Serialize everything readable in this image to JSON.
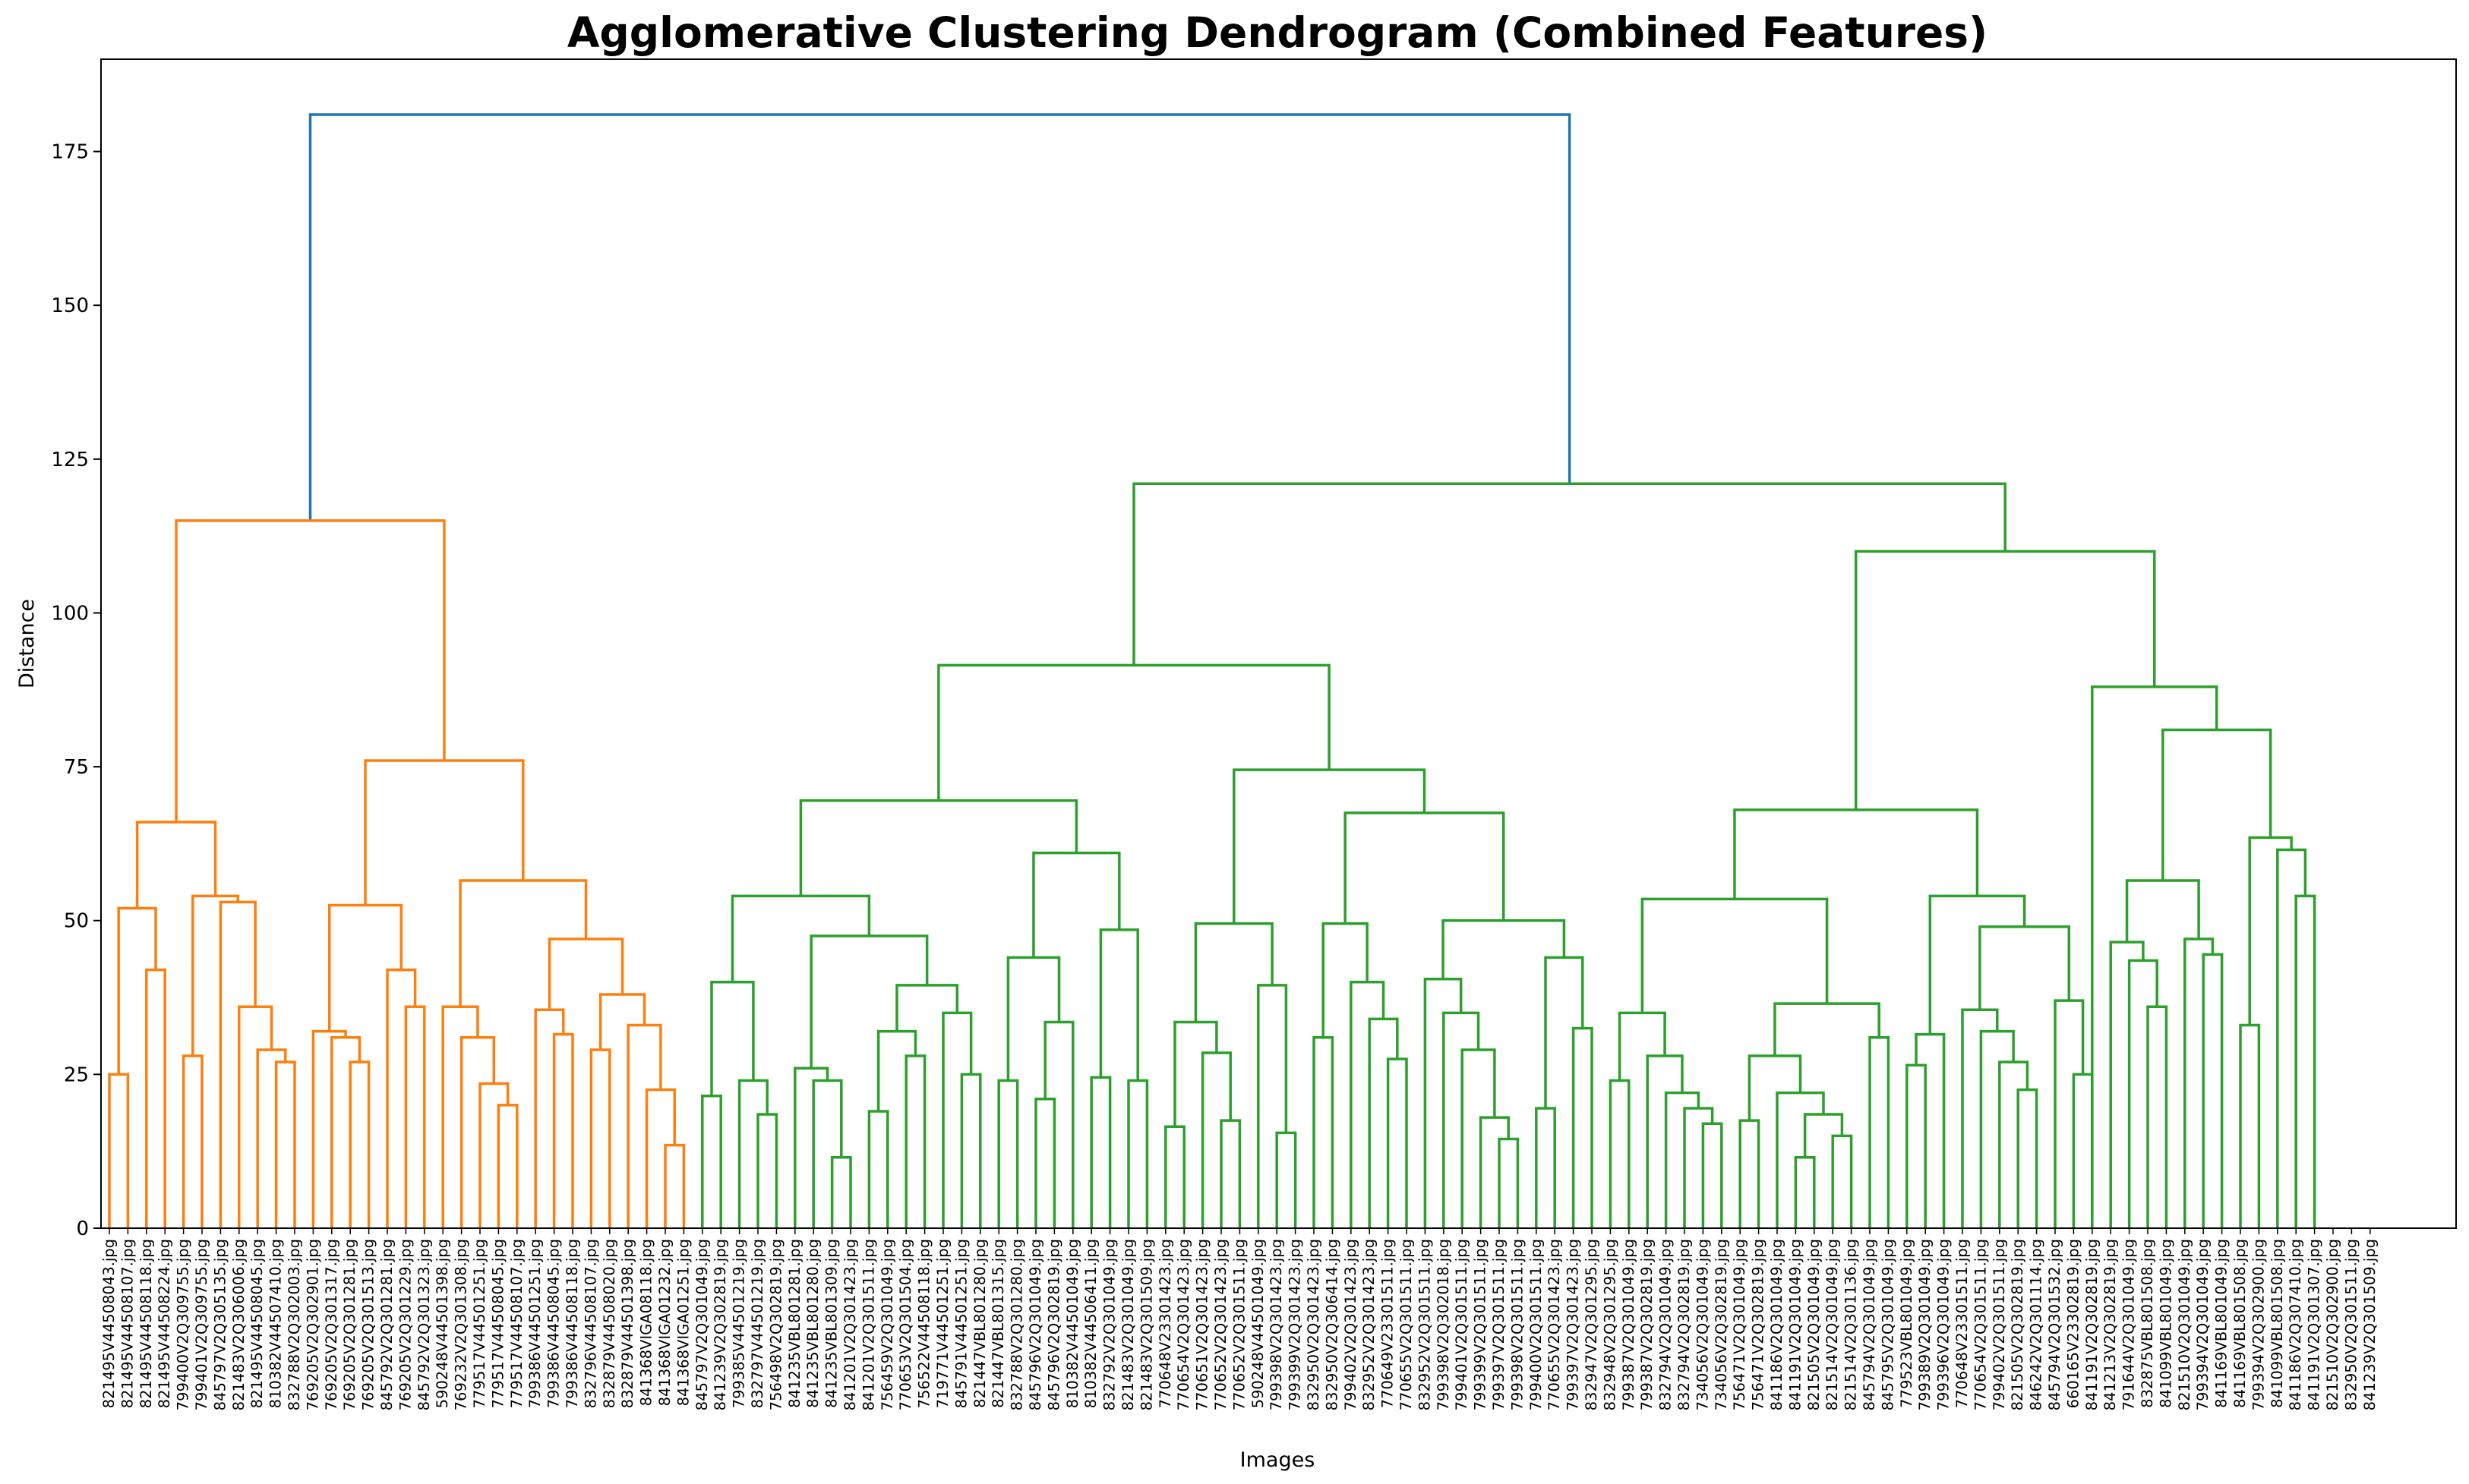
{
  "chart_data": {
    "type": "dendrogram",
    "title": "Agglomerative Clustering Dendrogram (Combined Features)",
    "xlabel": "Images",
    "ylabel": "Distance",
    "ylim": [
      0,
      190
    ],
    "yticks": [
      "0",
      "25",
      "50",
      "75",
      "100",
      "125",
      "150",
      "175"
    ],
    "grid": false,
    "colors": {
      "root": "#1f77b4",
      "cluster_1": "#ff7f0e",
      "cluster_2": "#2ca02c"
    },
    "leaves": [
      "821495V44508043.jpg",
      "821495V44508107.jpg",
      "821495V44508118.jpg",
      "821495V44508224.jpg",
      "799400V2Q309755.jpg",
      "799401V2Q309755.jpg",
      "845797V2Q305135.jpg",
      "821483V2Q306006.jpg",
      "821495V44508045.jpg",
      "810382V44507410.jpg",
      "832788V2Q302003.jpg",
      "769205V2Q302901.jpg",
      "769205V2Q301317.jpg",
      "769205V2Q301281.jpg",
      "769205V2Q301513.jpg",
      "845792V2Q301281.jpg",
      "769205V2Q301229.jpg",
      "845792V2Q301323.jpg",
      "590248V44501398.jpg",
      "769232V2Q301308.jpg",
      "779517V44501251.jpg",
      "779517V44508045.jpg",
      "779517V44508107.jpg",
      "799386V44501251.jpg",
      "799386V44508045.jpg",
      "799386V44508118.jpg",
      "832796V44508107.jpg",
      "832879V44508020.jpg",
      "832879V44501398.jpg",
      "841368VIGA08118.jpg",
      "841368VIGA01232.jpg",
      "841368VIGA01251.jpg",
      "845797V2Q301049.jpg",
      "841239V2Q302819.jpg",
      "799385V44501219.jpg",
      "832797V44501219.jpg",
      "756498V2Q302819.jpg",
      "841235VBL801281.jpg",
      "841235VBL801280.jpg",
      "841235VBL801309.jpg",
      "841201V2Q301423.jpg",
      "841201V2Q301511.jpg",
      "756459V2Q301049.jpg",
      "770653V2Q301504.jpg",
      "756522V44508118.jpg",
      "719771V44501251.jpg",
      "845791V44501251.jpg",
      "821447VBL801280.jpg",
      "821447VBL801315.jpg",
      "832788V2Q301280.jpg",
      "845796V2Q301049.jpg",
      "845796V2Q302819.jpg",
      "810382V44501049.jpg",
      "810382V44506411.jpg",
      "832792V2Q301049.jpg",
      "821483V2Q301049.jpg",
      "821483V2Q301509.jpg",
      "770648V23301423.jpg",
      "770654V2Q301423.jpg",
      "770651V2Q301423.jpg",
      "770652V2Q301423.jpg",
      "770652V2Q301511.jpg",
      "590248V44501049.jpg",
      "799398V2Q301423.jpg",
      "799399V2Q301423.jpg",
      "832950V2Q301423.jpg",
      "832950V2Q306414.jpg",
      "799402V2Q301423.jpg",
      "832952V2Q301423.jpg",
      "770649V23301511.jpg",
      "770655V2Q301511.jpg",
      "832952V2Q301511.jpg",
      "799398V2Q302018.jpg",
      "799401V2Q301511.jpg",
      "799399V2Q301511.jpg",
      "799397V2Q301511.jpg",
      "799398V2Q301511.jpg",
      "799400V2Q301511.jpg",
      "770655V2Q301423.jpg",
      "799397V2Q301423.jpg",
      "832947V2Q301295.jpg",
      "832948V2Q301295.jpg",
      "799387V2Q301049.jpg",
      "799387V2Q302819.jpg",
      "832794V2Q301049.jpg",
      "832794V2Q302819.jpg",
      "734056V2Q301049.jpg",
      "734056V2Q302819.jpg",
      "756471V2Q301049.jpg",
      "756471V2Q302819.jpg",
      "841186V2Q301049.jpg",
      "841191V2Q301049.jpg",
      "821505V2Q301049.jpg",
      "821514V2Q301049.jpg",
      "821514V2Q301136.jpg",
      "845794V2Q301049.jpg",
      "845795V2Q301049.jpg",
      "779523VBL801049.jpg",
      "799389V2Q301049.jpg",
      "799396V2Q301049.jpg",
      "770648V23301511.jpg",
      "770654V2Q301511.jpg",
      "799402V2Q301511.jpg",
      "821505V2Q302819.jpg",
      "846242V2Q301114.jpg",
      "845794V2Q301532.jpg",
      "660165V23302819.jpg",
      "841191V2Q302819.jpg",
      "841213V2Q302819.jpg",
      "791644V2Q301049.jpg",
      "832875VBL801508.jpg",
      "841099VBL801049.jpg",
      "821510V2Q301049.jpg",
      "799394V2Q301049.jpg",
      "841169VBL801049.jpg",
      "841169VBL801508.jpg",
      "799394V2Q302900.jpg",
      "841099VBL801508.jpg",
      "841186V2Q307410.jpg",
      "841191V2Q301307.jpg",
      "821510V2Q302900.jpg",
      "832950V2Q301511.jpg",
      "841239V2Q301509.jpg"
    ],
    "merge_heights": {
      "root": 181,
      "cluster_1_top": 115,
      "cluster_2_top": 121,
      "cluster_2_right": 110,
      "cluster_2_left": 91.5
    }
  }
}
